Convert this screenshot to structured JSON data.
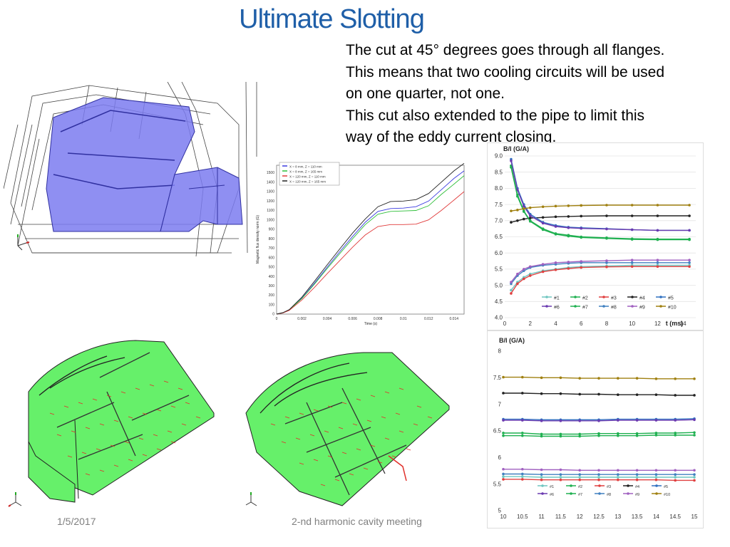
{
  "slide": {
    "title": "Ultimate Slotting",
    "body_lines": [
      "The cut at 45° degrees goes through all flanges.",
      "This means that two cooling circuits will be used",
      "on one quarter, not one.",
      "This cut also extended to the pipe to limit this",
      "way of the eddy current closing."
    ],
    "footer_date": "1/5/2017",
    "footer_meeting": "2-nd harmonic cavity meeting"
  },
  "colors": {
    "title": "#1f5fa8",
    "cad_blue": "#7b7bf0",
    "cad_green": "#66f06a",
    "field_red": "#e0302a"
  },
  "chart_data": [
    {
      "type": "line",
      "ylabel": "Magnetic flux density norm (G)",
      "xlabel": "Time (s)",
      "x_ticks": [
        "0",
        "0.002",
        "0.004",
        "0.006",
        "0.008",
        "0.01",
        "0.012",
        "0.014"
      ],
      "y_ticks": [
        "0",
        "100",
        "200",
        "300",
        "400",
        "500",
        "600",
        "700",
        "800",
        "900",
        "1000",
        "1100",
        "1200",
        "1300",
        "1400",
        "1500"
      ],
      "xlim": [
        0,
        0.0148
      ],
      "ylim": [
        0,
        1580
      ],
      "legend": [
        "X = 8 mm, Z = 110 mm",
        "X = 8 mm, Z = 165 mm",
        "X = 120 mm, Z = 110 mm",
        "X = 120 mm, Z = 165 mm"
      ],
      "series": [
        {
          "name": "X = 8 mm, Z = 110 mm",
          "color": "#3a3ae0",
          "x": [
            0,
            0.0005,
            0.001,
            0.002,
            0.003,
            0.004,
            0.005,
            0.006,
            0.007,
            0.008,
            0.009,
            0.01,
            0.011,
            0.012,
            0.013,
            0.014,
            0.0148
          ],
          "y": [
            0,
            15,
            45,
            170,
            330,
            500,
            665,
            825,
            975,
            1090,
            1120,
            1125,
            1140,
            1200,
            1320,
            1440,
            1520
          ]
        },
        {
          "name": "X = 8 mm, Z = 165 mm",
          "color": "#2fbf3a",
          "x": [
            0,
            0.0005,
            0.001,
            0.002,
            0.003,
            0.004,
            0.005,
            0.006,
            0.007,
            0.008,
            0.009,
            0.01,
            0.011,
            0.012,
            0.013,
            0.014,
            0.0148
          ],
          "y": [
            0,
            15,
            45,
            165,
            320,
            485,
            645,
            800,
            950,
            1060,
            1090,
            1095,
            1100,
            1150,
            1270,
            1380,
            1470
          ]
        },
        {
          "name": "X = 120 mm, Z = 110 mm",
          "color": "#e03a3a",
          "x": [
            0,
            0.0005,
            0.001,
            0.002,
            0.003,
            0.004,
            0.005,
            0.006,
            0.007,
            0.008,
            0.009,
            0.01,
            0.011,
            0.012,
            0.013,
            0.014,
            0.0148
          ],
          "y": [
            0,
            12,
            40,
            150,
            285,
            430,
            570,
            710,
            840,
            930,
            950,
            950,
            955,
            1000,
            1100,
            1210,
            1300
          ]
        },
        {
          "name": "X = 120 mm, Z = 165 mm",
          "color": "#222222",
          "x": [
            0,
            0.0005,
            0.001,
            0.002,
            0.003,
            0.004,
            0.005,
            0.006,
            0.007,
            0.008,
            0.009,
            0.01,
            0.011,
            0.012,
            0.013,
            0.014,
            0.0148
          ],
          "y": [
            0,
            15,
            48,
            180,
            350,
            525,
            695,
            860,
            1010,
            1140,
            1195,
            1200,
            1215,
            1280,
            1400,
            1520,
            1600
          ]
        }
      ]
    },
    {
      "type": "line",
      "title": "B/I (G/A)",
      "xlabel": "t (ms)",
      "x_ticks": [
        "0",
        "2",
        "4",
        "6",
        "8",
        "10",
        "12",
        "14"
      ],
      "y_ticks": [
        "4.0",
        "4.5",
        "5.0",
        "5.5",
        "6.0",
        "6.5",
        "7.0",
        "7.5",
        "8.0",
        "8.5",
        "9.0"
      ],
      "xlim": [
        0,
        15
      ],
      "ylim": [
        4.0,
        9.0
      ],
      "legend": [
        "#1",
        "#2",
        "#3",
        "#4",
        "#5",
        "#6",
        "#7",
        "#8",
        "#9",
        "#10"
      ],
      "series": [
        {
          "name": "#1",
          "color": "#6fc6c0",
          "x": [
            0.5,
            1,
            1.5,
            2,
            3,
            4,
            5,
            6,
            8,
            10,
            12,
            14.5
          ],
          "y": [
            4.85,
            5.1,
            5.25,
            5.35,
            5.45,
            5.5,
            5.55,
            5.58,
            5.6,
            5.62,
            5.62,
            5.62
          ]
        },
        {
          "name": "#2",
          "color": "#1fb050",
          "x": [
            0.5,
            1,
            1.5,
            2,
            3,
            4,
            5,
            6,
            8,
            10,
            12,
            14.5
          ],
          "y": [
            8.7,
            7.8,
            7.3,
            7.0,
            6.75,
            6.6,
            6.55,
            6.5,
            6.47,
            6.44,
            6.43,
            6.43
          ]
        },
        {
          "name": "#3",
          "color": "#e04040",
          "x": [
            0.5,
            1,
            1.5,
            2,
            3,
            4,
            5,
            6,
            8,
            10,
            12,
            14.5
          ],
          "y": [
            4.75,
            5.05,
            5.2,
            5.3,
            5.42,
            5.48,
            5.52,
            5.55,
            5.57,
            5.58,
            5.58,
            5.58
          ]
        },
        {
          "name": "#4",
          "color": "#222222",
          "x": [
            0.5,
            1,
            1.5,
            2,
            3,
            4,
            5,
            6,
            8,
            10,
            12,
            14.5
          ],
          "y": [
            6.95,
            7.0,
            7.05,
            7.08,
            7.1,
            7.12,
            7.13,
            7.14,
            7.15,
            7.15,
            7.15,
            7.15
          ]
        },
        {
          "name": "#5",
          "color": "#3070c0",
          "x": [
            0.5,
            1,
            1.5,
            2,
            3,
            4,
            5,
            6,
            8,
            10,
            12,
            14.5
          ],
          "y": [
            8.9,
            8.0,
            7.5,
            7.2,
            6.95,
            6.85,
            6.8,
            6.78,
            6.75,
            6.72,
            6.7,
            6.7
          ]
        },
        {
          "name": "#6",
          "color": "#6a3ab0",
          "x": [
            0.5,
            1,
            1.5,
            2,
            3,
            4,
            5,
            6,
            8,
            10,
            12,
            14.5
          ],
          "y": [
            8.85,
            7.95,
            7.45,
            7.15,
            6.92,
            6.82,
            6.78,
            6.76,
            6.74,
            6.72,
            6.7,
            6.7
          ]
        },
        {
          "name": "#7",
          "color": "#1fb050",
          "x": [
            0.5,
            1,
            1.5,
            2,
            3,
            4,
            5,
            6,
            8,
            10,
            12,
            14.5
          ],
          "y": [
            8.65,
            7.75,
            7.28,
            6.98,
            6.72,
            6.58,
            6.52,
            6.48,
            6.45,
            6.42,
            6.41,
            6.41
          ]
        },
        {
          "name": "#8",
          "color": "#4080c0",
          "x": [
            0.5,
            1,
            1.5,
            2,
            3,
            4,
            5,
            6,
            8,
            10,
            12,
            14.5
          ],
          "y": [
            5.05,
            5.3,
            5.45,
            5.55,
            5.62,
            5.65,
            5.68,
            5.7,
            5.7,
            5.7,
            5.7,
            5.7
          ]
        },
        {
          "name": "#9",
          "color": "#a060c0",
          "x": [
            0.5,
            1,
            1.5,
            2,
            3,
            4,
            5,
            6,
            8,
            10,
            12,
            14.5
          ],
          "y": [
            5.1,
            5.35,
            5.5,
            5.58,
            5.65,
            5.7,
            5.72,
            5.74,
            5.76,
            5.78,
            5.78,
            5.78
          ]
        },
        {
          "name": "#10",
          "color": "#a08010",
          "x": [
            0.5,
            1,
            1.5,
            2,
            3,
            4,
            5,
            6,
            8,
            10,
            12,
            14.5
          ],
          "y": [
            7.3,
            7.33,
            7.37,
            7.4,
            7.43,
            7.45,
            7.46,
            7.47,
            7.48,
            7.48,
            7.48,
            7.48
          ]
        }
      ]
    },
    {
      "type": "line",
      "title": "B/I (G/A)",
      "x_ticks": [
        "10",
        "10.5",
        "11",
        "11.5",
        "12",
        "12.5",
        "13",
        "13.5",
        "14",
        "14.5",
        "15"
      ],
      "y_ticks": [
        "5",
        "5.5",
        "6",
        "6.5",
        "7",
        "7.5",
        "8"
      ],
      "xlim": [
        10,
        15
      ],
      "ylim": [
        5,
        8
      ],
      "legend": [
        "#1",
        "#2",
        "#3",
        "#4",
        "#5",
        "#6",
        "#7",
        "#8",
        "#9",
        "#10"
      ],
      "series": [
        {
          "name": "#1",
          "color": "#6fc6c0",
          "x": [
            10,
            10.5,
            11,
            11.5,
            12,
            12.5,
            13,
            13.5,
            14,
            14.5,
            15
          ],
          "y": [
            5.64,
            5.64,
            5.63,
            5.63,
            5.63,
            5.63,
            5.63,
            5.63,
            5.63,
            5.63,
            5.63
          ]
        },
        {
          "name": "#2",
          "color": "#1fb050",
          "x": [
            10,
            10.5,
            11,
            11.5,
            12,
            12.5,
            13,
            13.5,
            14,
            14.5,
            15
          ],
          "y": [
            6.46,
            6.46,
            6.44,
            6.44,
            6.44,
            6.45,
            6.45,
            6.45,
            6.46,
            6.46,
            6.47
          ]
        },
        {
          "name": "#3",
          "color": "#e04040",
          "x": [
            10,
            10.5,
            11,
            11.5,
            12,
            12.5,
            13,
            13.5,
            14,
            14.5,
            15
          ],
          "y": [
            5.59,
            5.59,
            5.58,
            5.58,
            5.58,
            5.58,
            5.58,
            5.58,
            5.58,
            5.57,
            5.57
          ]
        },
        {
          "name": "#4",
          "color": "#222222",
          "x": [
            10,
            10.5,
            11,
            11.5,
            12,
            12.5,
            13,
            13.5,
            14,
            14.5,
            15
          ],
          "y": [
            7.21,
            7.21,
            7.2,
            7.2,
            7.19,
            7.19,
            7.18,
            7.18,
            7.18,
            7.17,
            7.17
          ]
        },
        {
          "name": "#5",
          "color": "#3070c0",
          "x": [
            10,
            10.5,
            11,
            11.5,
            12,
            12.5,
            13,
            13.5,
            14,
            14.5,
            15
          ],
          "y": [
            6.72,
            6.72,
            6.71,
            6.71,
            6.71,
            6.71,
            6.72,
            6.72,
            6.72,
            6.72,
            6.73
          ]
        },
        {
          "name": "#6",
          "color": "#6a3ab0",
          "x": [
            10,
            10.5,
            11,
            11.5,
            12,
            12.5,
            13,
            13.5,
            14,
            14.5,
            15
          ],
          "y": [
            6.7,
            6.7,
            6.69,
            6.69,
            6.69,
            6.69,
            6.7,
            6.7,
            6.7,
            6.7,
            6.71
          ]
        },
        {
          "name": "#7",
          "color": "#1fb050",
          "x": [
            10,
            10.5,
            11,
            11.5,
            12,
            12.5,
            13,
            13.5,
            14,
            14.5,
            15
          ],
          "y": [
            6.41,
            6.41,
            6.4,
            6.4,
            6.4,
            6.41,
            6.41,
            6.41,
            6.42,
            6.42,
            6.42
          ]
        },
        {
          "name": "#8",
          "color": "#4080c0",
          "x": [
            10,
            10.5,
            11,
            11.5,
            12,
            12.5,
            13,
            13.5,
            14,
            14.5,
            15
          ],
          "y": [
            5.69,
            5.69,
            5.68,
            5.68,
            5.68,
            5.68,
            5.68,
            5.68,
            5.68,
            5.68,
            5.68
          ]
        },
        {
          "name": "#9",
          "color": "#a060c0",
          "x": [
            10,
            10.5,
            11,
            11.5,
            12,
            12.5,
            13,
            13.5,
            14,
            14.5,
            15
          ],
          "y": [
            5.78,
            5.78,
            5.77,
            5.77,
            5.76,
            5.76,
            5.76,
            5.76,
            5.76,
            5.76,
            5.76
          ]
        },
        {
          "name": "#10",
          "color": "#a08010",
          "x": [
            10,
            10.5,
            11,
            11.5,
            12,
            12.5,
            13,
            13.5,
            14,
            14.5,
            15
          ],
          "y": [
            7.51,
            7.51,
            7.5,
            7.5,
            7.49,
            7.49,
            7.49,
            7.49,
            7.48,
            7.48,
            7.48
          ]
        }
      ]
    }
  ]
}
